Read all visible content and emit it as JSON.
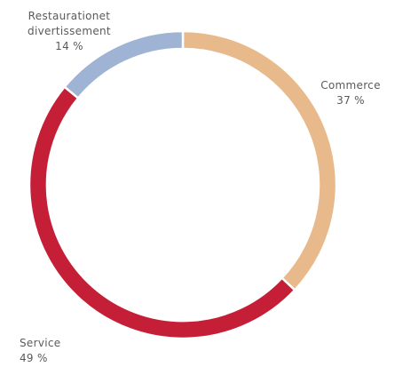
{
  "chart_data": {
    "type": "pie",
    "variant": "donut",
    "categories": [
      "Commerce",
      "Service",
      "Restauration et divertissement"
    ],
    "values": [
      37,
      49,
      14
    ],
    "unit": "%",
    "colors": [
      "#e8b98a",
      "#c51f38",
      "#9fb3d4"
    ],
    "start_direction": "top",
    "direction": "clockwise",
    "legend": "none",
    "labels": [
      {
        "name_lines": [
          "Commerce"
        ],
        "value": "37 %"
      },
      {
        "name_lines": [
          "Service"
        ],
        "value": "49 %"
      },
      {
        "name_lines": [
          "Restaurationet",
          "divertissement"
        ],
        "value": "14 %"
      }
    ]
  }
}
